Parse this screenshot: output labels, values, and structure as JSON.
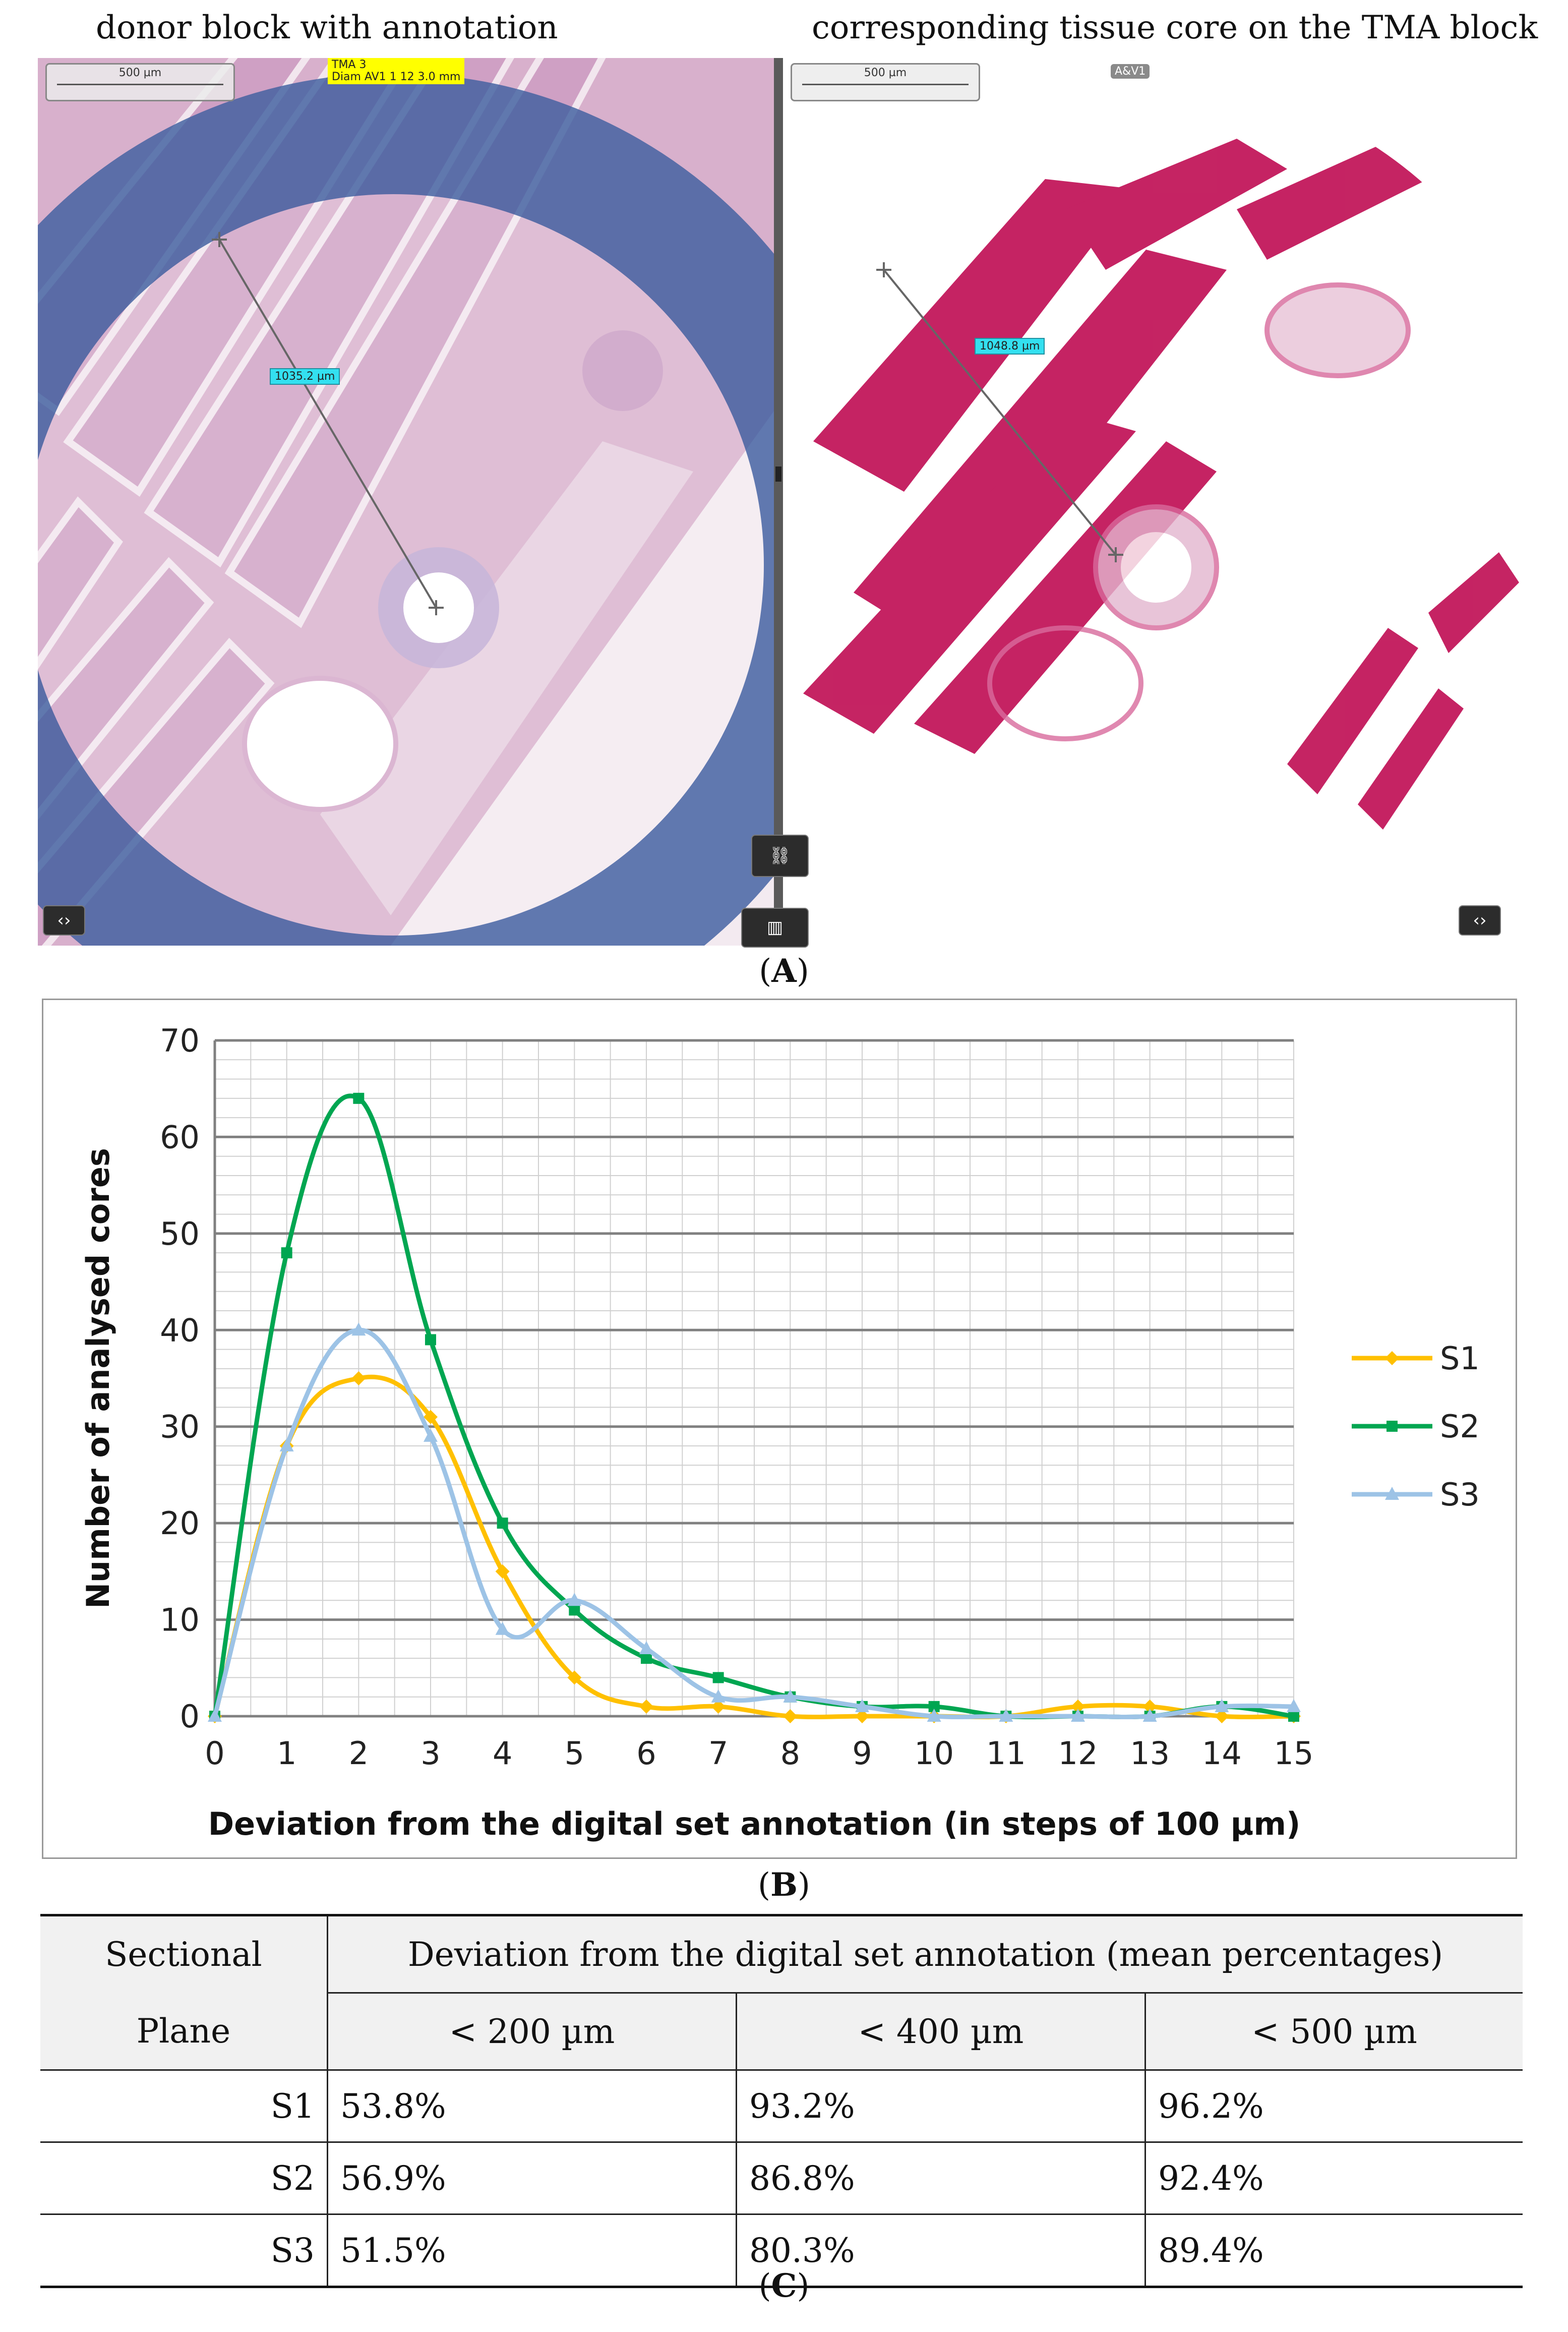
{
  "panel_a": {
    "left_caption": "donor block with annotation",
    "right_caption": "corresponding tissue core on the TMA block",
    "label": "A",
    "left_viewer": {
      "scale_bar": "500 µm",
      "tag_line1": "TMA 3",
      "tag_line2": "Diam AV1 1 12 3.0 mm",
      "measurement": "1035.2 µm"
    },
    "right_viewer": {
      "scale_bar": "500 µm",
      "tag": "A&V1",
      "measurement": "1048.8 µm"
    },
    "icons": {
      "nav_left": "left-right-arrows-icon",
      "link": "link-icon",
      "grid": "grid-icon",
      "nav_right": "left-right-arrows-icon"
    },
    "colors": {
      "donor_ring": "#3f5fa0",
      "he_pink": "#d4a6c8",
      "core_magenta": "#c2185b",
      "measure_tag": "#33e0f0",
      "yellow_tag": "#ffff00"
    }
  },
  "panel_b": {
    "label": "B"
  },
  "panel_c": {
    "label": "C"
  },
  "chart_data": {
    "type": "line",
    "xlabel": "Deviation from the digital set annotation  (in steps of 100 µm)",
    "ylabel": "Number of analysed cores",
    "x": [
      0,
      1,
      2,
      3,
      4,
      5,
      6,
      7,
      8,
      9,
      10,
      11,
      12,
      13,
      14,
      15
    ],
    "xlim": [
      0,
      15
    ],
    "ylim": [
      0,
      70
    ],
    "yticks": [
      0,
      10,
      20,
      30,
      40,
      50,
      60,
      70
    ],
    "xticks": [
      0,
      1,
      2,
      3,
      4,
      5,
      6,
      7,
      8,
      9,
      10,
      11,
      12,
      13,
      14,
      15
    ],
    "grid": true,
    "legend_position": "right",
    "series": [
      {
        "name": "S1",
        "color": "#ffc000",
        "marker": "diamond",
        "values": [
          0,
          28,
          35,
          31,
          15,
          4,
          1,
          1,
          0,
          0,
          0,
          0,
          1,
          1,
          0,
          0
        ]
      },
      {
        "name": "S2",
        "color": "#00a651",
        "marker": "square",
        "values": [
          0,
          48,
          64,
          39,
          20,
          11,
          6,
          4,
          2,
          1,
          1,
          0,
          0,
          0,
          1,
          0
        ]
      },
      {
        "name": "S3",
        "color": "#9dc3e6",
        "marker": "triangle",
        "values": [
          0,
          28,
          40,
          29,
          9,
          12,
          7,
          2,
          2,
          1,
          0,
          0,
          0,
          0,
          1,
          1
        ]
      }
    ]
  },
  "table": {
    "header_col1_line1": "Sectional",
    "header_col1_line2": "Plane",
    "header_group": "Deviation from the digital set annotation (mean percentages)",
    "subheaders": [
      "< 200 µm",
      "< 400 µm",
      "< 500 µm"
    ],
    "rows": [
      {
        "plane": "S1",
        "values": [
          "53.8%",
          "93.2%",
          "96.2%"
        ]
      },
      {
        "plane": "S2",
        "values": [
          "56.9%",
          "86.8%",
          "92.4%"
        ]
      },
      {
        "plane": "S3",
        "values": [
          "51.5%",
          "80.3%",
          "89.4%"
        ]
      }
    ]
  }
}
